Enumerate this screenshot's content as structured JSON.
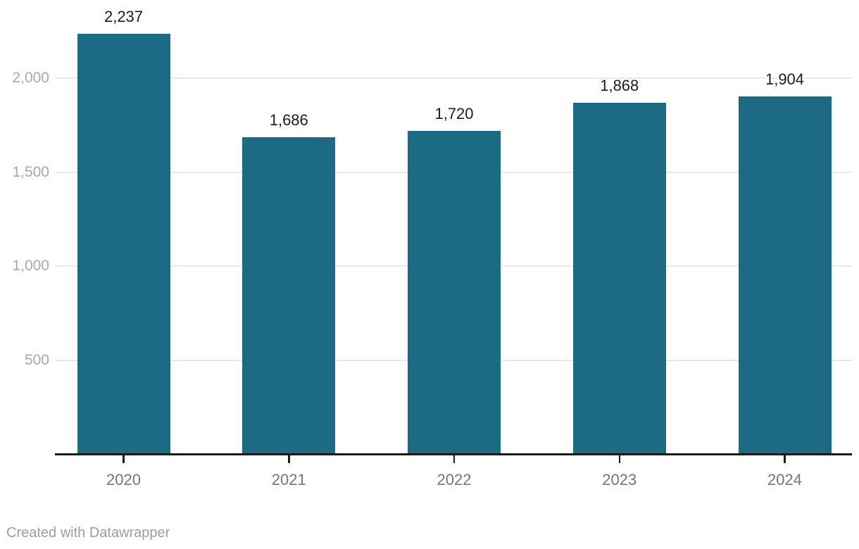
{
  "chart_data": {
    "type": "bar",
    "categories": [
      "2020",
      "2021",
      "2022",
      "2023",
      "2024"
    ],
    "values": [
      2237,
      1686,
      1720,
      1868,
      1904
    ],
    "value_labels": [
      "2,237",
      "1,686",
      "1,720",
      "1,868",
      "1,904"
    ],
    "title": "",
    "xlabel": "",
    "ylabel": "",
    "ylim": [
      0,
      2417
    ],
    "y_ticks": [
      500,
      1000,
      1500,
      2000
    ],
    "y_tick_labels": [
      "500",
      "1,000",
      "1,500",
      "2,000"
    ],
    "grid": true,
    "legend_position": "none"
  },
  "colors": {
    "bar": "#1d6a85",
    "grid": "#e8e8e8",
    "axis": "#1a1a1a",
    "value_label": "#1c1c1c",
    "x_tick_label": "#757575",
    "y_tick_label": "#a8a8a8",
    "footer": "#9c9c9c",
    "background": "#ffffff"
  },
  "footer": {
    "credit": "Created with Datawrapper"
  }
}
